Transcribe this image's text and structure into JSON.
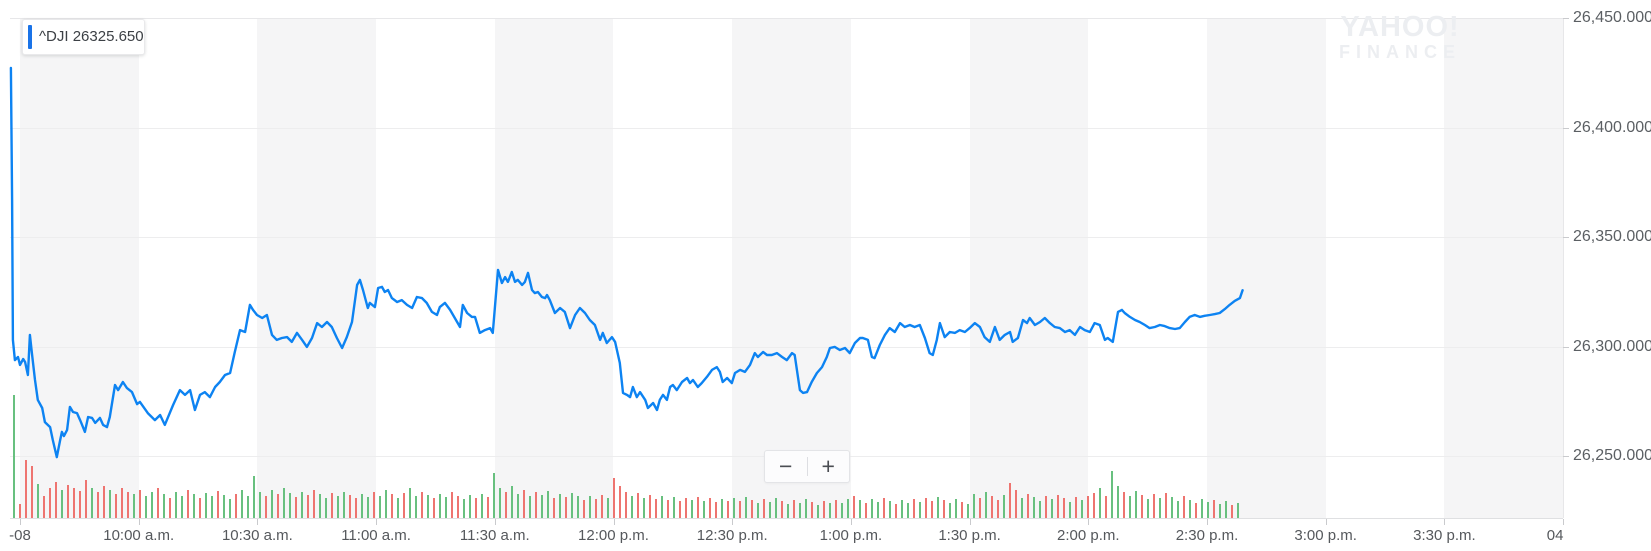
{
  "legend": {
    "text": "^DJI 26325.650"
  },
  "watermark": {
    "line1": "YAHOO!",
    "line2": "FINANCE"
  },
  "zoom_controls": {
    "minus": "−",
    "plus": "+"
  },
  "colors": {
    "line": "#0d83f2",
    "legend_accent": "#1a73e8",
    "volume_up": "#68c07f",
    "volume_down": "#ee7470",
    "stripe": "#f5f5f6",
    "grid": "#ededee"
  },
  "chart_data": {
    "type": "line",
    "title": "^DJI intraday price with volume",
    "symbol": "^DJI",
    "last_price": 26325.65,
    "legend_position": "top-left",
    "grid": true,
    "x_axis": {
      "unit": "minutes since 9:30 a.m.",
      "ticks": [
        {
          "label": "-08",
          "min": 0
        },
        {
          "label": "10:00 a.m.",
          "min": 30
        },
        {
          "label": "10:30 a.m.",
          "min": 60
        },
        {
          "label": "11:00 a.m.",
          "min": 90
        },
        {
          "label": "11:30 a.m.",
          "min": 120
        },
        {
          "label": "12:00 p.m.",
          "min": 150
        },
        {
          "label": "12:30 p.m.",
          "min": 180
        },
        {
          "label": "1:00 p.m.",
          "min": 210
        },
        {
          "label": "1:30 p.m.",
          "min": 240
        },
        {
          "label": "2:00 p.m.",
          "min": 270
        },
        {
          "label": "2:30 p.m.",
          "min": 300
        },
        {
          "label": "3:00 p.m.",
          "min": 330
        },
        {
          "label": "3:30 p.m.",
          "min": 360
        },
        {
          "label": "04",
          "min": 390,
          "dx": -8
        }
      ],
      "shaded_band_start_minutes": [
        0,
        60,
        120,
        180,
        240,
        300,
        360
      ],
      "band_width_minutes": 30
    },
    "y_axis": {
      "min": 26221,
      "max": 26459,
      "ticks": [
        {
          "label": "26,450.000",
          "value": 26450
        },
        {
          "label": "26,400.000",
          "value": 26400
        },
        {
          "label": "26,350.000",
          "value": 26350
        },
        {
          "label": "26,300.000",
          "value": 26300
        },
        {
          "label": "26,250.000",
          "value": 26250
        }
      ]
    },
    "series": {
      "name": "^DJI",
      "t_minutes": [
        -2.3,
        -2,
        -1.8,
        -1.3,
        -0.5,
        0,
        0.8,
        1.3,
        2,
        2.5,
        3,
        3.8,
        4.5,
        5.6,
        6.3,
        7.6,
        8.3,
        9.3,
        10.1,
        10.6,
        11.1,
        11.9,
        12.6,
        13.4,
        14.4,
        15.2,
        15.7,
        16.4,
        17.2,
        18.2,
        19,
        20.2,
        21,
        22,
        22.7,
        24,
        24.8,
        26,
        27,
        28.3,
        29.6,
        30.3,
        32.3,
        34.1,
        35.4,
        36.6,
        38.7,
        40.4,
        41.7,
        43,
        44.2,
        45.5,
        46.7,
        48,
        49.3,
        50.5,
        51.8,
        53.1,
        54.3,
        55.6,
        56.9,
        58.1,
        58.9,
        59.9,
        61.2,
        62.4,
        63.7,
        64.9,
        66.2,
        67.5,
        68.7,
        70,
        71.3,
        72.5,
        73.8,
        75.1,
        76.3,
        77.6,
        78.8,
        80.1,
        81.4,
        82.6,
        83.9,
        85.2,
        85.9,
        86.7,
        87.9,
        88.4,
        89.7,
        90.5,
        91.5,
        92.2,
        93,
        94,
        95.3,
        96.5,
        97.8,
        99.1,
        100.3,
        101.6,
        102.8,
        104.1,
        105.4,
        106.1,
        107.4,
        108.7,
        109.9,
        111.2,
        111.9,
        113,
        114.2,
        115,
        116.2,
        117.5,
        118.8,
        119.5,
        120.8,
        121.8,
        122.6,
        123.3,
        124.3,
        125.1,
        125.8,
        126.9,
        127.6,
        128.4,
        129.4,
        130.1,
        130.9,
        131.9,
        132.7,
        133.2,
        133.9,
        135.2,
        136.5,
        137.7,
        139,
        140.3,
        141.5,
        142.8,
        144,
        145.3,
        146.6,
        147.3,
        148.3,
        149.6,
        150.4,
        151.6,
        152.4,
        153.4,
        154.2,
        154.9,
        155.9,
        156.7,
        158,
        158.7,
        160,
        161,
        161.7,
        162.5,
        163.5,
        164.3,
        165,
        166,
        167.3,
        168.6,
        169.3,
        170.1,
        171.3,
        172.3,
        173.6,
        174.9,
        176.1,
        176.9,
        177.6,
        178.7,
        179.9,
        180.7,
        182,
        183.2,
        184.5,
        185.7,
        186.5,
        187.8,
        188.8,
        190,
        191.3,
        192.6,
        193.8,
        195.1,
        195.8,
        197.1,
        197.9,
        198.9,
        200.1,
        201.4,
        202.7,
        203.9,
        204.7,
        205.9,
        207.2,
        208.5,
        209.7,
        211,
        212.3,
        213,
        214.3,
        215.3,
        216,
        217.3,
        218.6,
        219.8,
        221.1,
        222.4,
        223.6,
        224.9,
        226.1,
        227.4,
        228.7,
        229.9,
        230.7,
        231.7,
        232.5,
        233.7,
        235,
        236.3,
        237.5,
        238.8,
        240,
        241.3,
        242.6,
        243.8,
        245.1,
        246.4,
        247.6,
        248.9,
        250.2,
        250.9,
        252.2,
        253.5,
        254.5,
        255.2,
        256.5,
        257.8,
        259,
        260.3,
        261.5,
        262.8,
        264.1,
        265.3,
        266.6,
        267.9,
        269.1,
        270.4,
        271.6,
        272.9,
        274.2,
        274.9,
        276.2,
        277.5,
        278.5,
        279.2,
        280.5,
        281.8,
        283,
        284.3,
        285.5,
        286.8,
        288.1,
        289.3,
        290.6,
        291.9,
        293.1,
        294.4,
        295.6,
        296.9,
        298.2,
        299.4,
        300.7,
        302,
        303.2,
        304.5,
        305.7,
        307,
        308.3,
        309
      ],
      "price": [
        26427.2,
        26366.9,
        26303,
        26293.8,
        26295.2,
        26291.6,
        26294.3,
        26292.9,
        26287,
        26305.3,
        26297,
        26284.7,
        26275.6,
        26271.9,
        26265.5,
        26263.2,
        26257.3,
        26249.5,
        26256.9,
        26261,
        26259.1,
        26261.9,
        26272.4,
        26270.1,
        26269.6,
        26266.4,
        26264.2,
        26261,
        26267.8,
        26267.4,
        26265.1,
        26267.4,
        26264.2,
        26263.2,
        26267.8,
        26282.4,
        26280.1,
        26283.8,
        26281.1,
        26279.2,
        26273.7,
        26274.7,
        26269.6,
        26266.4,
        26268.7,
        26264.2,
        26273.3,
        26280.1,
        26277.9,
        26280.1,
        26271,
        26277.9,
        26279.2,
        26276.9,
        26281.5,
        26283.8,
        26287,
        26287.9,
        26297.5,
        26307.5,
        26306.6,
        26319,
        26316.7,
        26314.4,
        26313,
        26314.4,
        26305.3,
        26303,
        26303.9,
        26304.3,
        26302.1,
        26306.2,
        26303,
        26299.8,
        26303.9,
        26310.7,
        26308.9,
        26311.2,
        26308.9,
        26303.9,
        26299.3,
        26304.3,
        26311.2,
        26328.1,
        26330.4,
        26325.8,
        26317.6,
        26319.9,
        26318,
        26326.7,
        26327.2,
        26324.9,
        26325.8,
        26322.1,
        26320.3,
        26321.2,
        26319,
        26317.6,
        26322.6,
        26322.1,
        26319.9,
        26315.8,
        26314.4,
        26318,
        26319.9,
        26316.7,
        26313,
        26308.9,
        26319,
        26315.3,
        26313.5,
        26313.5,
        26306.2,
        26307.5,
        26308.4,
        26306.2,
        26335,
        26329,
        26331.7,
        26329.5,
        26334,
        26329.5,
        26330.4,
        26328.1,
        26329.5,
        26333.6,
        26325.8,
        26324.4,
        26324.9,
        26322.6,
        26322.1,
        26323.5,
        26321.2,
        26315.3,
        26317.6,
        26315.8,
        26308.4,
        26314.4,
        26317.6,
        26315.3,
        26312.1,
        26309.8,
        26303,
        26306.2,
        26301.6,
        26304.3,
        26302.1,
        26292.5,
        26278.8,
        26277.9,
        26276.9,
        26281.5,
        26276.9,
        26279.2,
        26275.6,
        26271.9,
        26274.2,
        26271,
        26275.6,
        26277.9,
        26275.6,
        26281.5,
        26282.4,
        26280.1,
        26283.8,
        26285.6,
        26283.3,
        26284.7,
        26281.5,
        26283.3,
        26286.1,
        26289.3,
        26290.6,
        26288.4,
        26283.8,
        26285.6,
        26283.3,
        26287.9,
        26289.3,
        26288.4,
        26291.6,
        26297,
        26295.2,
        26297.5,
        26296.1,
        26296.1,
        26297,
        26295.2,
        26293.8,
        26297,
        26296.1,
        26280.1,
        26278.8,
        26279.2,
        26283.8,
        26287.9,
        26290.6,
        26295.2,
        26299.3,
        26299.8,
        26298.4,
        26299.3,
        26297,
        26301.6,
        26303.9,
        26303.9,
        26303,
        26295.2,
        26294.7,
        26300.7,
        26305.3,
        26308.4,
        26306.6,
        26310.7,
        26308.9,
        26309.8,
        26308.9,
        26309.8,
        26303.9,
        26297,
        26296.1,
        26303,
        26310.7,
        26304.3,
        26306.6,
        26306.2,
        26307.5,
        26306.6,
        26308.4,
        26310.7,
        26308.9,
        26304.3,
        26302.1,
        26308.9,
        26303,
        26305.3,
        26306.6,
        26302.1,
        26303.9,
        26312.1,
        26310.7,
        26313,
        26309.8,
        26311.2,
        26313,
        26310.7,
        26308.9,
        26308.4,
        26306.6,
        26307.5,
        26305.3,
        26308.9,
        26307.5,
        26306.6,
        26310.7,
        26309.8,
        26303,
        26303.9,
        26302.1,
        26315.8,
        26316.7,
        26315.3,
        26313.5,
        26312.1,
        26311.2,
        26309.8,
        26308.4,
        26308.9,
        26309.8,
        26309.3,
        26308.4,
        26308,
        26308.4,
        26311.2,
        26313.5,
        26314.4,
        26313.5,
        26314,
        26314.4,
        26314.8,
        26315.3,
        26317.1,
        26319,
        26320.8,
        26322.1,
        26325.7
      ]
    },
    "volume": {
      "note": "relative heights of 1-minute volume bars, direction g=up r=down",
      "relative_heights": [
        123,
        14,
        58,
        52,
        34,
        22,
        30,
        36,
        28,
        33,
        30,
        27,
        38,
        30,
        26,
        32,
        28,
        24,
        30,
        26,
        24,
        28,
        22,
        26,
        30,
        24,
        20,
        26,
        22,
        28,
        24,
        20,
        25,
        22,
        27,
        23,
        19,
        24,
        28,
        22,
        42,
        26,
        22,
        28,
        24,
        30,
        25,
        21,
        26,
        23,
        28,
        24,
        20,
        25,
        22,
        26,
        23,
        20,
        24,
        21,
        26,
        22,
        28,
        24,
        20,
        25,
        30,
        22,
        26,
        23,
        20,
        24,
        21,
        26,
        22,
        19,
        23,
        20,
        24,
        21,
        45,
        30,
        26,
        32,
        24,
        28,
        22,
        26,
        23,
        27,
        20,
        24,
        21,
        25,
        22,
        18,
        22,
        19,
        23,
        20,
        40,
        32,
        26,
        22,
        25,
        20,
        23,
        19,
        22,
        18,
        21,
        17,
        20,
        18,
        21,
        17,
        20,
        16,
        19,
        17,
        20,
        17,
        21,
        18,
        15,
        19,
        16,
        20,
        17,
        14,
        18,
        15,
        19,
        16,
        13,
        17,
        15,
        18,
        15,
        19,
        22,
        18,
        15,
        19,
        16,
        20,
        17,
        14,
        18,
        15,
        19,
        16,
        20,
        17,
        21,
        18,
        15,
        19,
        16,
        14,
        24,
        20,
        26,
        22,
        18,
        23,
        35,
        28,
        20,
        24,
        21,
        17,
        22,
        19,
        23,
        20,
        16,
        21,
        18,
        22,
        25,
        30,
        22,
        47,
        32,
        26,
        22,
        27,
        23,
        19,
        24,
        20,
        25,
        21,
        17,
        22,
        18,
        15,
        19,
        16,
        18,
        14,
        17,
        13,
        15
      ],
      "direction": "grrrgrrrgrrrrgrrgrrrgrggrgrggrgrggrggrggggrgrggrgrrggrggrrggrggrgrggrgrggrrggrgrggrggrgrggrgrggrgrrgrrrgrgrrgrgrrgrgrrgrgrgrgrggrgrggrgrgrggrgrggrgrggrgrrgrggrggrgrrgrrgrggrgrrgrgrrgrggrggrgrgrggrgrggrggrg"
    }
  }
}
